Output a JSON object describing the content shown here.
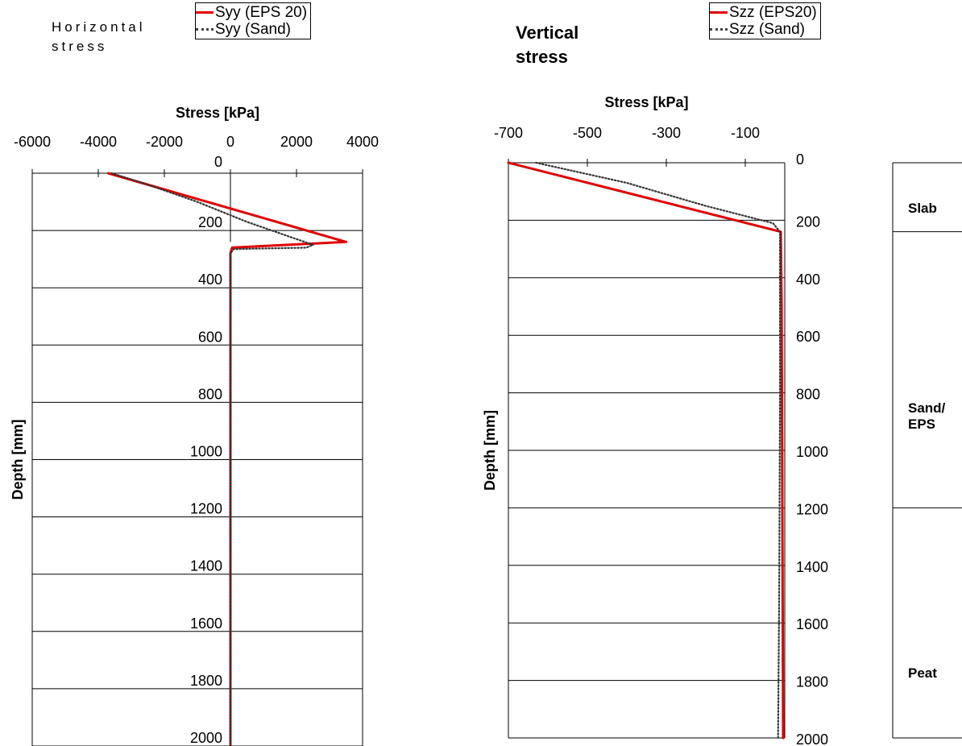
{
  "titles": {
    "horizontal": "Horizontal stress",
    "vertical": "Vertical stress"
  },
  "legend_left": [
    {
      "label": "Syy (EPS 20)",
      "style": "solid",
      "color": "#e00000"
    },
    {
      "label": "Syy (Sand)",
      "style": "dotted",
      "color": "#444444"
    }
  ],
  "legend_right": [
    {
      "label": "Szz (EPS20)",
      "style": "solid",
      "color": "#e00000"
    },
    {
      "label": "Szz (Sand)",
      "style": "dotted",
      "color": "#444444"
    }
  ],
  "layers": [
    {
      "label": "Slab",
      "top": 0,
      "bottom": 240
    },
    {
      "label": "Sand/\nEPS",
      "top": 240,
      "bottom": 1200
    },
    {
      "label": "Peat",
      "top": 1200,
      "bottom": 2000
    }
  ],
  "chart_data": [
    {
      "type": "line",
      "title": "",
      "xlabel": "Stress [kPa]",
      "ylabel": "Depth [mm]",
      "xlim": [
        -6000,
        4000
      ],
      "ylim": [
        2000,
        0
      ],
      "x_ticks": [
        "-6000",
        "-4000",
        "-2000",
        "0",
        "2000",
        "4000"
      ],
      "y_ticks": [
        "0",
        "200",
        "400",
        "600",
        "800",
        "1000",
        "1200",
        "1400",
        "1600",
        "1800",
        "2000"
      ],
      "x_axis_position": "top",
      "grid": "horizontal",
      "legend": "top",
      "series": [
        {
          "name": "Syy (EPS 20)",
          "x": [
            -3700,
            3500,
            50,
            0,
            0
          ],
          "y": [
            0,
            240,
            260,
            280,
            2000
          ]
        },
        {
          "name": "Syy (Sand)",
          "x": [
            -3600,
            -2500,
            -1000,
            500,
            2500,
            2300,
            100,
            0,
            0
          ],
          "y": [
            0,
            40,
            100,
            170,
            250,
            260,
            265,
            280,
            2000
          ]
        }
      ]
    },
    {
      "type": "line",
      "title": "",
      "xlabel": "Stress [kPa]",
      "ylabel": "Depth [mm]",
      "xlim": [
        -700,
        0
      ],
      "ylim": [
        2000,
        0
      ],
      "x_ticks": [
        "-700",
        "-500",
        "-300",
        "-100"
      ],
      "y_ticks": [
        "0",
        "200",
        "400",
        "600",
        "800",
        "1000",
        "1200",
        "1400",
        "1600",
        "1800",
        "2000"
      ],
      "x_axis_position": "top",
      "grid": "horizontal",
      "legend": "top-right",
      "series": [
        {
          "name": "Szz (EPS20)",
          "x": [
            -700,
            -10,
            -8,
            -4
          ],
          "y": [
            0,
            240,
            500,
            2000
          ]
        },
        {
          "name": "Szz (Sand)",
          "x": [
            -630,
            -400,
            -200,
            -30,
            -12,
            -12,
            -14,
            -17
          ],
          "y": [
            0,
            70,
            150,
            210,
            240,
            800,
            1500,
            2000
          ]
        }
      ]
    }
  ]
}
